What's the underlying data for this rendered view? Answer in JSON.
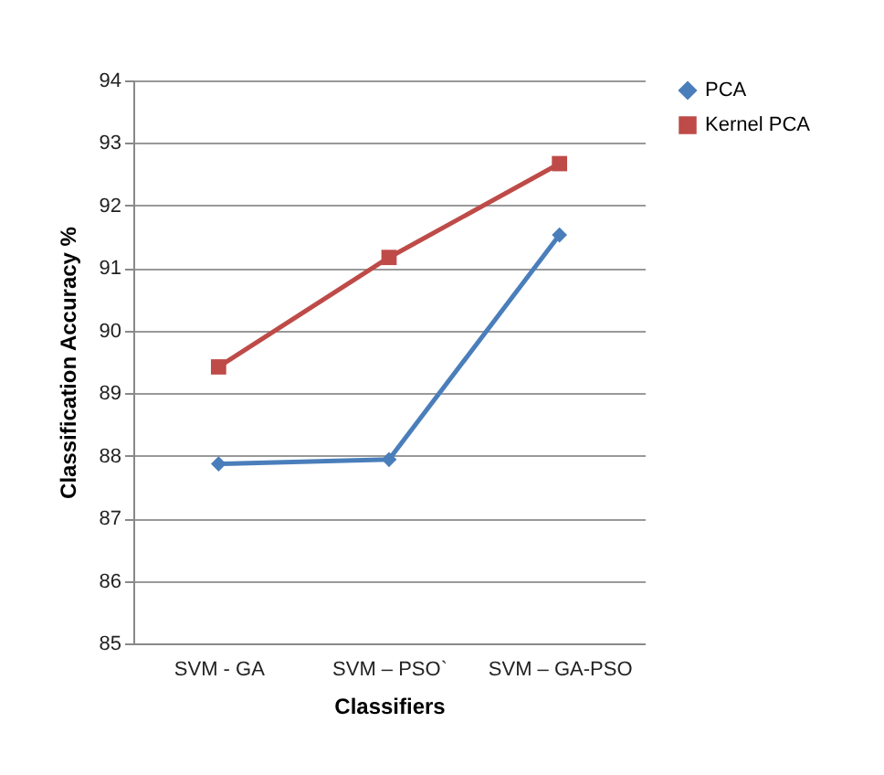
{
  "chart_data": {
    "type": "line",
    "xlabel": "Classifiers",
    "ylabel": "Classification Accuracy %",
    "categories": [
      "SVM - GA",
      "SVM – PSO`",
      "SVM – GA-PSO"
    ],
    "series": [
      {
        "name": "PCA",
        "color": "#4a7ebb",
        "marker": "diamond",
        "values": [
          87.87,
          87.94,
          91.53
        ]
      },
      {
        "name": "Kernel PCA",
        "color": "#be4b48",
        "marker": "square",
        "values": [
          89.42,
          91.17,
          92.67
        ]
      }
    ],
    "ylim": [
      85,
      94
    ],
    "yticks": [
      85,
      86,
      87,
      88,
      89,
      90,
      91,
      92,
      93,
      94
    ],
    "grid": "y",
    "legend": "right"
  }
}
